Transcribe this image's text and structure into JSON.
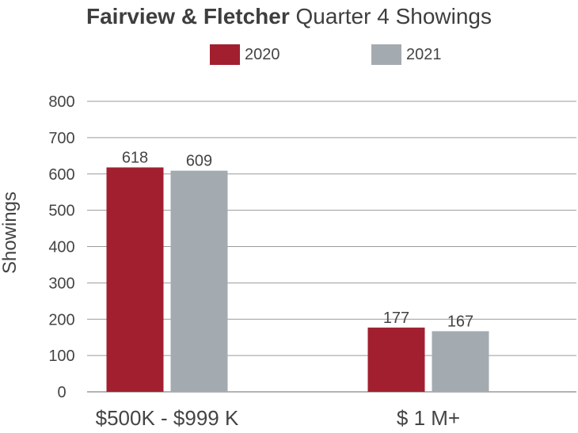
{
  "title": {
    "bold": "Fairview & Fletcher",
    "regular": " Quarter 4 Showings"
  },
  "legend": [
    {
      "label": "2020",
      "color": "#a21f30"
    },
    {
      "label": "2021",
      "color": "#a4abb0"
    }
  ],
  "colors": {
    "grid": "#9a9a9a",
    "axis_text": "#444444"
  },
  "chart_data": {
    "type": "bar",
    "title": "Fairview & Fletcher Quarter 4 Showings",
    "categories": [
      "$500K - $999 K",
      "$ 1 M+"
    ],
    "series": [
      {
        "name": "2020",
        "values": [
          618,
          177
        ],
        "color": "#a21f30"
      },
      {
        "name": "2021",
        "values": [
          609,
          167
        ],
        "color": "#a4abb0"
      }
    ],
    "xlabel": "",
    "ylabel": "Showings",
    "ylim": [
      0,
      800
    ],
    "yticks": [
      0,
      100,
      200,
      300,
      400,
      500,
      600,
      700,
      800
    ],
    "grid": true,
    "legend_position": "top"
  }
}
